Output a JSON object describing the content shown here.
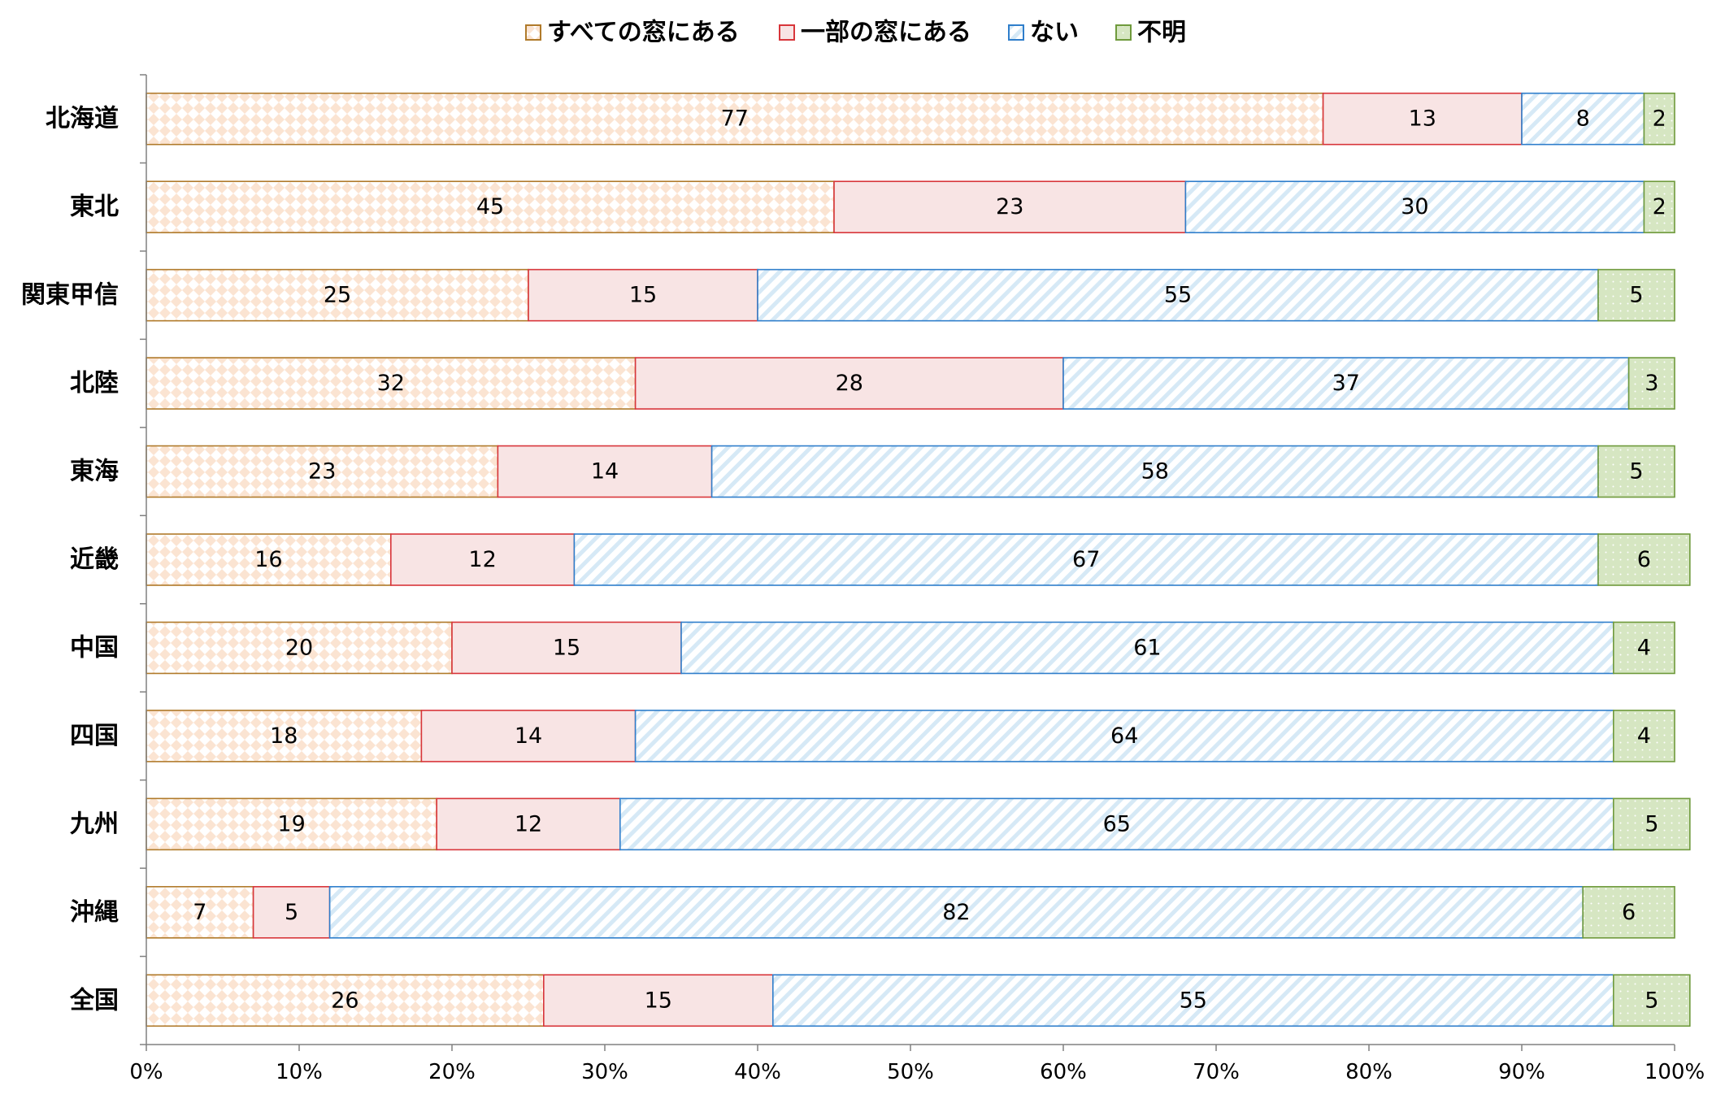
{
  "chart_data": {
    "type": "bar",
    "orientation": "horizontal",
    "stacked": true,
    "normalized": true,
    "legend_position": "top",
    "grid": false,
    "xlim": [
      0,
      100
    ],
    "x_ticks": [
      "0%",
      "10%",
      "20%",
      "30%",
      "40%",
      "50%",
      "60%",
      "70%",
      "80%",
      "90%",
      "100%"
    ],
    "categories": [
      "北海道",
      "東北",
      "関東甲信",
      "北陸",
      "東海",
      "近畿",
      "中国",
      "四国",
      "九州",
      "沖縄",
      "全国"
    ],
    "series": [
      {
        "name": "すべての窓にある",
        "values": [
          77,
          45,
          25,
          32,
          23,
          16,
          20,
          18,
          19,
          7,
          26
        ],
        "color": "#b07a2a",
        "fill": "#fbe9dc"
      },
      {
        "name": "一部の窓にある",
        "values": [
          13,
          23,
          15,
          28,
          14,
          12,
          15,
          14,
          12,
          5,
          15
        ],
        "color": "#d8353a",
        "fill": "#f8e4e4"
      },
      {
        "name": "ない",
        "values": [
          8,
          30,
          55,
          37,
          58,
          67,
          61,
          64,
          65,
          82,
          55
        ],
        "color": "#2f7ecb",
        "fill": "#e7f2fa"
      },
      {
        "name": "不明",
        "values": [
          2,
          2,
          5,
          3,
          5,
          6,
          4,
          4,
          5,
          6,
          5
        ],
        "color": "#6f9a3c",
        "fill": "#d6e6c2"
      }
    ]
  }
}
